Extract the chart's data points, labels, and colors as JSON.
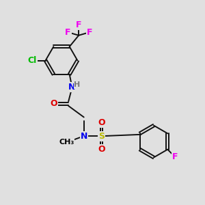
{
  "background_color": "#e0e0e0",
  "atom_colors": {
    "C": "#000000",
    "H": "#7a7a7a",
    "N": "#0000ee",
    "O": "#dd0000",
    "S": "#bbbb00",
    "F": "#ee00ee",
    "Cl": "#00bb00"
  },
  "bond_color": "#111111",
  "bond_width": 1.4,
  "font_size": 9,
  "figsize": [
    3.0,
    3.0
  ],
  "dpi": 100,
  "xlim": [
    -0.5,
    9.5
  ],
  "ylim": [
    0.0,
    9.5
  ]
}
